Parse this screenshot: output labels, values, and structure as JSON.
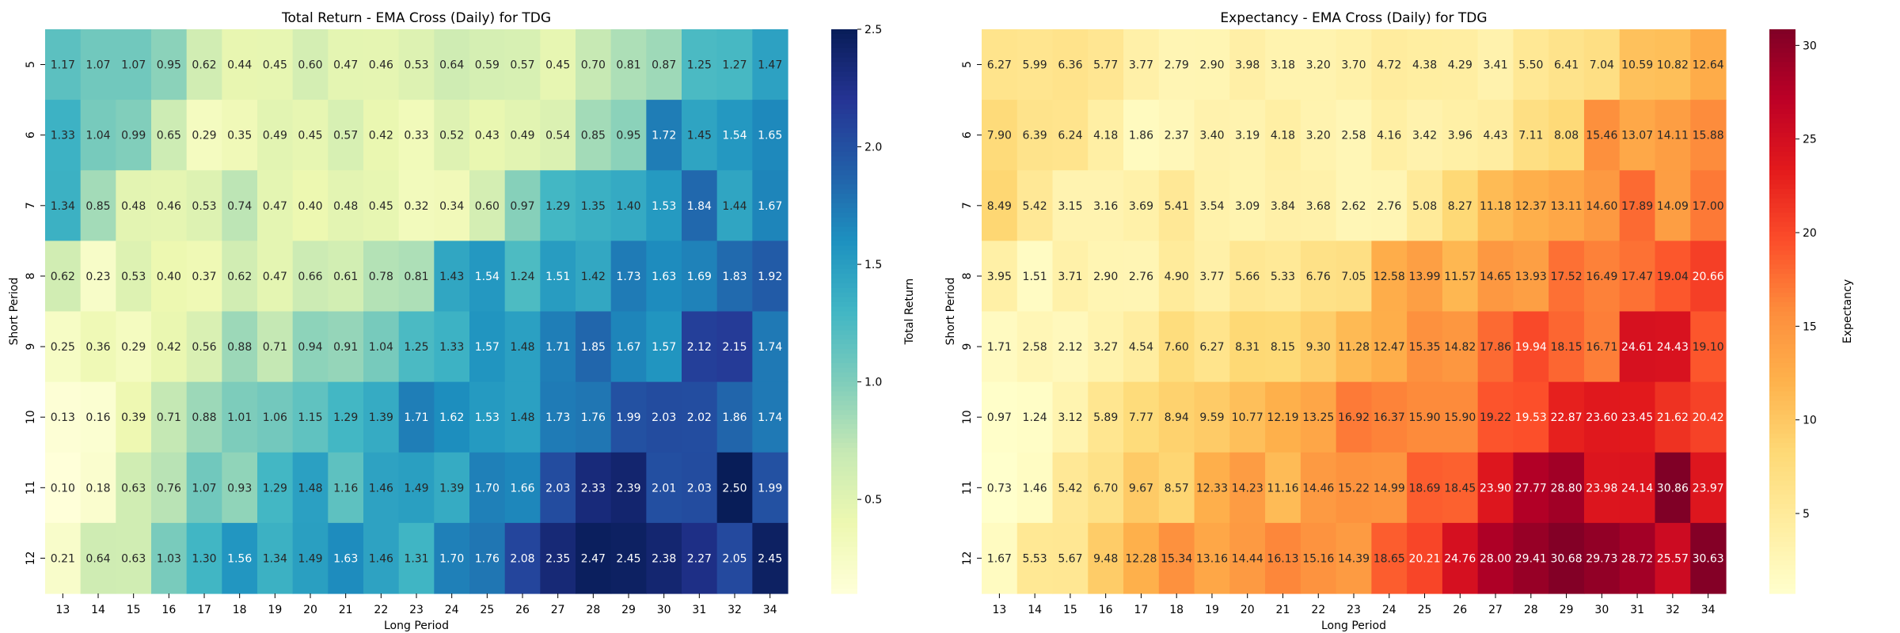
{
  "chart_data": [
    {
      "type": "heatmap",
      "title": "Total Return - EMA Cross (Daily) for TDG",
      "xlabel": "Long Period",
      "ylabel": "Short Period",
      "colorbar_label": "Total Return",
      "colormap": "YlGnBu",
      "vmin": 0.1,
      "vmax": 2.5,
      "colorbar_ticks": [
        "0.5",
        "1.0",
        "1.5",
        "2.0",
        "2.5"
      ],
      "colorbar_tick_values": [
        0.5,
        1.0,
        1.5,
        2.0,
        2.5
      ],
      "x": [
        "13",
        "14",
        "15",
        "16",
        "17",
        "18",
        "19",
        "20",
        "21",
        "22",
        "23",
        "24",
        "25",
        "26",
        "27",
        "28",
        "29",
        "30",
        "31",
        "32",
        "34"
      ],
      "y": [
        "5",
        "6",
        "7",
        "8",
        "9",
        "10",
        "11",
        "12"
      ],
      "values": [
        [
          1.17,
          1.07,
          1.07,
          0.95,
          0.62,
          0.44,
          0.45,
          0.6,
          0.47,
          0.46,
          0.53,
          0.64,
          0.59,
          0.57,
          0.45,
          0.7,
          0.81,
          0.87,
          1.25,
          1.27,
          1.47
        ],
        [
          1.33,
          1.04,
          0.99,
          0.65,
          0.29,
          0.35,
          0.49,
          0.45,
          0.57,
          0.42,
          0.33,
          0.52,
          0.43,
          0.49,
          0.54,
          0.85,
          0.95,
          1.72,
          1.45,
          1.54,
          1.65
        ],
        [
          1.34,
          0.85,
          0.48,
          0.46,
          0.53,
          0.74,
          0.47,
          0.4,
          0.48,
          0.45,
          0.32,
          0.34,
          0.6,
          0.97,
          1.29,
          1.35,
          1.4,
          1.53,
          1.84,
          1.44,
          1.67
        ],
        [
          0.62,
          0.23,
          0.53,
          0.4,
          0.37,
          0.62,
          0.47,
          0.66,
          0.61,
          0.78,
          0.81,
          1.43,
          1.54,
          1.24,
          1.51,
          1.42,
          1.73,
          1.63,
          1.69,
          1.83,
          1.92
        ],
        [
          0.25,
          0.36,
          0.29,
          0.42,
          0.56,
          0.88,
          0.71,
          0.94,
          0.91,
          1.04,
          1.25,
          1.33,
          1.57,
          1.48,
          1.71,
          1.85,
          1.67,
          1.57,
          2.12,
          2.15,
          1.74
        ],
        [
          0.13,
          0.16,
          0.39,
          0.71,
          0.88,
          1.01,
          1.06,
          1.15,
          1.29,
          1.39,
          1.71,
          1.62,
          1.53,
          1.48,
          1.73,
          1.76,
          1.99,
          2.03,
          2.02,
          1.86,
          1.74
        ],
        [
          0.1,
          0.18,
          0.63,
          0.76,
          1.07,
          0.93,
          1.29,
          1.48,
          1.16,
          1.46,
          1.49,
          1.39,
          1.7,
          1.66,
          2.03,
          2.33,
          2.39,
          2.01,
          2.03,
          2.5,
          1.99
        ],
        [
          0.21,
          0.64,
          0.63,
          1.03,
          1.3,
          1.56,
          1.34,
          1.49,
          1.63,
          1.46,
          1.31,
          1.7,
          1.76,
          2.08,
          2.35,
          2.47,
          2.45,
          2.38,
          2.27,
          2.05,
          2.45
        ]
      ]
    },
    {
      "type": "heatmap",
      "title": "Expectancy - EMA Cross (Daily) for TDG",
      "xlabel": "Long Period",
      "ylabel": "Short Period",
      "colorbar_label": "Expectancy",
      "colormap": "YlOrRd",
      "vmin": 0.73,
      "vmax": 30.86,
      "colorbar_ticks": [
        "5",
        "10",
        "15",
        "20",
        "25",
        "30"
      ],
      "colorbar_tick_values": [
        5,
        10,
        15,
        20,
        25,
        30
      ],
      "x": [
        "13",
        "14",
        "15",
        "16",
        "17",
        "18",
        "19",
        "20",
        "21",
        "22",
        "23",
        "24",
        "25",
        "26",
        "27",
        "28",
        "29",
        "30",
        "31",
        "32",
        "34"
      ],
      "y": [
        "5",
        "6",
        "7",
        "8",
        "9",
        "10",
        "11",
        "12"
      ],
      "values": [
        [
          6.27,
          5.99,
          6.36,
          5.77,
          3.77,
          2.79,
          2.9,
          3.98,
          3.18,
          3.2,
          3.7,
          4.72,
          4.38,
          4.29,
          3.41,
          5.5,
          6.41,
          7.04,
          10.59,
          10.82,
          12.64
        ],
        [
          7.9,
          6.39,
          6.24,
          4.18,
          1.86,
          2.37,
          3.4,
          3.19,
          4.18,
          3.2,
          2.58,
          4.16,
          3.42,
          3.96,
          4.43,
          7.11,
          8.08,
          15.46,
          13.07,
          14.11,
          15.88
        ],
        [
          8.49,
          5.42,
          3.15,
          3.16,
          3.69,
          5.41,
          3.54,
          3.09,
          3.84,
          3.68,
          2.62,
          2.76,
          5.08,
          8.27,
          11.18,
          12.37,
          13.11,
          14.6,
          17.89,
          14.09,
          17.0
        ],
        [
          3.95,
          1.51,
          3.71,
          2.9,
          2.76,
          4.9,
          3.77,
          5.66,
          5.33,
          6.76,
          7.05,
          12.58,
          13.99,
          11.57,
          14.65,
          13.93,
          17.52,
          16.49,
          17.47,
          19.04,
          20.66
        ],
        [
          1.71,
          2.58,
          2.12,
          3.27,
          4.54,
          7.6,
          6.27,
          8.31,
          8.15,
          9.3,
          11.28,
          12.47,
          15.35,
          14.82,
          17.86,
          19.94,
          18.15,
          16.71,
          24.61,
          24.43,
          19.1
        ],
        [
          0.97,
          1.24,
          3.12,
          5.89,
          7.77,
          8.94,
          9.59,
          10.77,
          12.19,
          13.25,
          16.92,
          16.37,
          15.9,
          15.9,
          19.22,
          19.53,
          22.87,
          23.6,
          23.45,
          21.62,
          20.42
        ],
        [
          0.73,
          1.46,
          5.42,
          6.7,
          9.67,
          8.57,
          12.33,
          14.23,
          11.16,
          14.46,
          15.22,
          14.99,
          18.69,
          18.45,
          23.9,
          27.77,
          28.8,
          23.98,
          24.14,
          30.86,
          23.97
        ],
        [
          1.67,
          5.53,
          5.67,
          9.48,
          12.28,
          15.34,
          13.16,
          14.44,
          16.13,
          15.16,
          14.39,
          18.65,
          20.21,
          24.76,
          28.0,
          29.41,
          30.68,
          29.73,
          28.72,
          25.57,
          30.63
        ]
      ]
    }
  ]
}
